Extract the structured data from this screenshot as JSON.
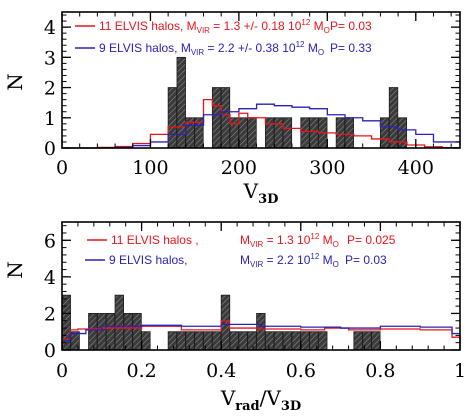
{
  "chart_data": [
    {
      "type": "bar",
      "xlabel": "V",
      "xlabel_sub": "3D",
      "ylabel": "N",
      "xlim": [
        0,
        450
      ],
      "ylim": [
        0,
        4.5
      ],
      "xticks": [
        0,
        100,
        200,
        300,
        400
      ],
      "xtick_labels": [
        "0",
        "100",
        "200",
        "300",
        "400"
      ],
      "yticks": [
        0,
        1,
        2,
        3,
        4
      ],
      "ytick_labels": [
        "0",
        "1",
        "2",
        "3",
        "4"
      ],
      "legend": [
        {
          "count": "11 ELVIS halos,",
          "m": "M",
          "sub": "VIR",
          "val": " = 1.3 +/- 0.18  10",
          "exp": "12",
          "unit": " M",
          "unit_sub": "O",
          "p": "P= 0.03",
          "color": "#e8141a"
        },
        {
          "count": "9 ELVIS halos,",
          "m": "M",
          "sub": "VIR",
          "val": " = 2.2 +/- 0.38  10",
          "exp": "12",
          "unit": " M",
          "unit_sub": "O",
          "p": "P= 0.33",
          "color": "#2a22b8"
        }
      ],
      "bar_width": 10,
      "bars": [
        {
          "x0": 120,
          "v": 2
        },
        {
          "x0": 130,
          "v": 3
        },
        {
          "x0": 140,
          "v": 1
        },
        {
          "x0": 150,
          "v": 1
        },
        {
          "x0": 170,
          "v": 2
        },
        {
          "x0": 180,
          "v": 2
        },
        {
          "x0": 190,
          "v": 1
        },
        {
          "x0": 200,
          "v": 1
        },
        {
          "x0": 210,
          "v": 1
        },
        {
          "x0": 230,
          "v": 1
        },
        {
          "x0": 240,
          "v": 1
        },
        {
          "x0": 250,
          "v": 1
        },
        {
          "x0": 270,
          "v": 1
        },
        {
          "x0": 280,
          "v": 1
        },
        {
          "x0": 290,
          "v": 1
        },
        {
          "x0": 310,
          "v": 1
        },
        {
          "x0": 320,
          "v": 1
        },
        {
          "x0": 360,
          "v": 1
        },
        {
          "x0": 370,
          "v": 2
        },
        {
          "x0": 380,
          "v": 1
        }
      ],
      "series": [
        {
          "name": "11 ELVIS halos",
          "color": "#e8141a",
          "x": [
            0,
            40,
            60,
            80,
            100,
            120,
            140,
            160,
            170,
            180,
            190,
            200,
            210,
            230,
            250,
            270,
            290,
            310,
            330,
            350,
            370,
            390,
            410,
            430,
            450
          ],
          "y": [
            0,
            0.02,
            0.05,
            0.15,
            0.45,
            0.7,
            0.85,
            1.6,
            1.4,
            1.1,
            0.8,
            1.15,
            1.0,
            0.8,
            0.65,
            0.55,
            0.5,
            0.45,
            0.4,
            0.3,
            0.2,
            0.1,
            0.04,
            0.01,
            0
          ]
        },
        {
          "name": "9 ELVIS halos",
          "color": "#2a22b8",
          "x": [
            0,
            60,
            80,
            100,
            120,
            140,
            160,
            180,
            200,
            220,
            240,
            260,
            280,
            300,
            320,
            340,
            360,
            380,
            400,
            420,
            450
          ],
          "y": [
            0,
            0.02,
            0.08,
            0.2,
            0.45,
            0.75,
            1.1,
            1.2,
            1.3,
            1.45,
            1.4,
            1.35,
            1.3,
            1.1,
            1.0,
            0.9,
            0.7,
            0.6,
            0.45,
            0.2,
            0.1
          ]
        }
      ]
    },
    {
      "type": "bar",
      "xlabel": "V",
      "xlabel_sub": "rad",
      "xlabel_mid": "/V",
      "xlabel_sub2": "3D",
      "ylabel": "N",
      "xlim": [
        0,
        1
      ],
      "ylim": [
        0,
        7
      ],
      "xticks": [
        0,
        0.2,
        0.4,
        0.6,
        0.8,
        1
      ],
      "xtick_labels": [
        "0",
        "0.2",
        "0.4",
        "0.6",
        "0.8",
        "1"
      ],
      "yticks": [
        0,
        2,
        4,
        6
      ],
      "ytick_labels": [
        "0",
        "2",
        "4",
        "6"
      ],
      "legend": [
        {
          "count": "11 ELVIS halos ,",
          "m": "M",
          "sub": "VIR",
          "val": " = 1.3 10",
          "exp": "12",
          "unit": " M",
          "unit_sub": "O",
          "p": "P= 0.025",
          "color": "#e8141a"
        },
        {
          "count": "9 ELVIS halos,",
          "m": "M",
          "sub": "VIR",
          "val": " = 2.2  10",
          "exp": "12",
          "unit": " M",
          "unit_sub": "O",
          "p": "P= 0.03",
          "color": "#2a22b8"
        }
      ],
      "bar_width": 0.0222,
      "bars": [
        {
          "x0": 0.0,
          "v": 3
        },
        {
          "x0": 0.0222,
          "v": 1
        },
        {
          "x0": 0.0667,
          "v": 2
        },
        {
          "x0": 0.0889,
          "v": 2
        },
        {
          "x0": 0.1111,
          "v": 2
        },
        {
          "x0": 0.1333,
          "v": 3
        },
        {
          "x0": 0.1556,
          "v": 2
        },
        {
          "x0": 0.1778,
          "v": 2
        },
        {
          "x0": 0.2,
          "v": 1
        },
        {
          "x0": 0.2667,
          "v": 1
        },
        {
          "x0": 0.2889,
          "v": 1
        },
        {
          "x0": 0.3111,
          "v": 1
        },
        {
          "x0": 0.3333,
          "v": 1
        },
        {
          "x0": 0.3556,
          "v": 1
        },
        {
          "x0": 0.3778,
          "v": 1
        },
        {
          "x0": 0.4,
          "v": 3
        },
        {
          "x0": 0.4222,
          "v": 1
        },
        {
          "x0": 0.4444,
          "v": 1
        },
        {
          "x0": 0.4667,
          "v": 1
        },
        {
          "x0": 0.4889,
          "v": 2
        },
        {
          "x0": 0.5111,
          "v": 1
        },
        {
          "x0": 0.5333,
          "v": 1
        },
        {
          "x0": 0.5556,
          "v": 1
        },
        {
          "x0": 0.5778,
          "v": 1
        },
        {
          "x0": 0.6,
          "v": 1
        },
        {
          "x0": 0.6222,
          "v": 1
        },
        {
          "x0": 0.6444,
          "v": 1
        },
        {
          "x0": 0.7333,
          "v": 1
        },
        {
          "x0": 0.7556,
          "v": 1
        },
        {
          "x0": 0.7778,
          "v": 1
        }
      ],
      "series": [
        {
          "name": "11 ELVIS halos",
          "color": "#e8141a",
          "x": [
            0,
            0.02,
            0.04,
            0.1,
            0.2,
            0.3,
            0.4,
            0.42,
            0.5,
            0.6,
            0.66,
            0.72,
            0.8,
            0.9,
            0.98,
            1.0
          ],
          "y": [
            0.6,
            1.1,
            1.15,
            1.2,
            1.3,
            1.1,
            1.6,
            1.2,
            1.15,
            1.1,
            1.2,
            1.1,
            1.15,
            1.1,
            0.7,
            0.5
          ]
        },
        {
          "name": "9 ELVIS halos",
          "color": "#2a22b8",
          "x": [
            0,
            0.02,
            0.06,
            0.1,
            0.2,
            0.3,
            0.4,
            0.5,
            0.6,
            0.7,
            0.8,
            0.9,
            0.98,
            1.0
          ],
          "y": [
            0.5,
            0.9,
            1.1,
            1.3,
            1.35,
            1.3,
            1.4,
            1.3,
            1.25,
            1.2,
            1.3,
            1.25,
            0.9,
            0.6
          ]
        }
      ]
    }
  ]
}
